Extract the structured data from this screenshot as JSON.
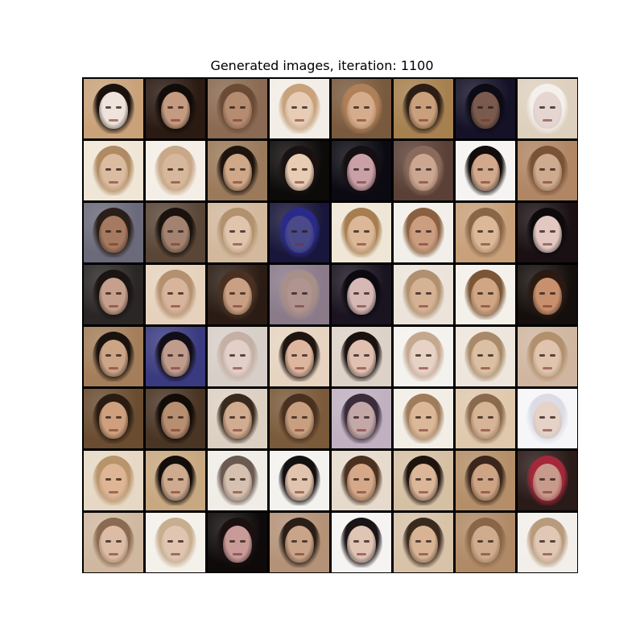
{
  "figure": {
    "title": "Generated images, iteration: 1100"
  },
  "grid": {
    "rows": 8,
    "cols": 8,
    "tiles": [
      {
        "bg": "#c9a27a",
        "hair": "#1a120d",
        "skin": "#efe4dc"
      },
      {
        "bg": "#2a1a12",
        "hair": "#120c09",
        "skin": "#c49a80"
      },
      {
        "bg": "#8a6a52",
        "hair": "#6b4a36",
        "skin": "#b58c70"
      },
      {
        "bg": "#f2ede6",
        "hair": "#c8a27a",
        "skin": "#e8cdb6"
      },
      {
        "bg": "#7a5a3e",
        "hair": "#b08058",
        "skin": "#d6ad8c"
      },
      {
        "bg": "#a6804f",
        "hair": "#2c1e14",
        "skin": "#caa07c"
      },
      {
        "bg": "#151228",
        "hair": "#0c0a14",
        "skin": "#7a5a4c"
      },
      {
        "bg": "#ded0be",
        "hair": "#f4f0ec",
        "skin": "#e6d6d2"
      },
      {
        "bg": "#f0e6d6",
        "hair": "#b08a62",
        "skin": "#dcbca0"
      },
      {
        "bg": "#f4eee6",
        "hair": "#c8a888",
        "skin": "#d8b89a"
      },
      {
        "bg": "#9a7a5a",
        "hair": "#1e140e",
        "skin": "#d0a888"
      },
      {
        "bg": "#0d0a0a",
        "hair": "#1a1210",
        "skin": "#e8ccb4"
      },
      {
        "bg": "#0b0a12",
        "hair": "#150f12",
        "skin": "#c8a0a6"
      },
      {
        "bg": "#5a4036",
        "hair": "#8a6a5a",
        "skin": "#cba690"
      },
      {
        "bg": "#f6f4f2",
        "hair": "#120c0a",
        "skin": "#d2a98c"
      },
      {
        "bg": "#b08664",
        "hair": "#7a5236",
        "skin": "#ceaa8e"
      },
      {
        "bg": "#6a6a7a",
        "hair": "#2a1e18",
        "skin": "#a67a60"
      },
      {
        "bg": "#5a4636",
        "hair": "#1a120e",
        "skin": "#a48270"
      },
      {
        "bg": "#d2b89c",
        "hair": "#b2926e",
        "skin": "#e0c4ac"
      },
      {
        "bg": "#18163a",
        "hair": "#2a2a8a",
        "skin": "#4a4a8a"
      },
      {
        "bg": "#efe6d6",
        "hair": "#a67e50",
        "skin": "#dcb898"
      },
      {
        "bg": "#f2efea",
        "hair": "#8a6040",
        "skin": "#cc9e80"
      },
      {
        "bg": "#c8a07a",
        "hair": "#8a6648",
        "skin": "#dcb898"
      },
      {
        "bg": "#1a1014",
        "hair": "#0e0a0c",
        "skin": "#e2c8c0"
      },
      {
        "bg": "#2a2626",
        "hair": "#1a1412",
        "skin": "#c6a08c"
      },
      {
        "bg": "#e6d2bc",
        "hair": "#b49070",
        "skin": "#d8b49a"
      },
      {
        "bg": "#2a1c14",
        "hair": "#4a3020",
        "skin": "#caa084"
      },
      {
        "bg": "#8a7a8a",
        "hair": "#a89088",
        "skin": "#b09490"
      },
      {
        "bg": "#1a1420",
        "hair": "#0c0a10",
        "skin": "#d6b8b4"
      },
      {
        "bg": "#ece4da",
        "hair": "#b09070",
        "skin": "#d6b294"
      },
      {
        "bg": "#f4f0ea",
        "hair": "#7a5636",
        "skin": "#d0a684"
      },
      {
        "bg": "#140e0c",
        "hair": "#2a1a12",
        "skin": "#c8906c"
      },
      {
        "bg": "#a47e5a",
        "hair": "#1a120e",
        "skin": "#cca486"
      },
      {
        "bg": "#3a3a80",
        "hair": "#120e18",
        "skin": "#c09c8c"
      },
      {
        "bg": "#d8cec8",
        "hair": "#c4b0a4",
        "skin": "#e2d0c8"
      },
      {
        "bg": "#e6d4c0",
        "hair": "#1e1410",
        "skin": "#deb6a0"
      },
      {
        "bg": "#ddd2c8",
        "hair": "#1a1210",
        "skin": "#e0c0b0"
      },
      {
        "bg": "#f4f2ee",
        "hair": "#c4a890",
        "skin": "#e8d2c6"
      },
      {
        "bg": "#eee6dc",
        "hair": "#a88a6a",
        "skin": "#dcc0a4"
      },
      {
        "bg": "#d0b6a0",
        "hair": "#b2906e",
        "skin": "#e0c4ae"
      },
      {
        "bg": "#6a4c30",
        "hair": "#2a1c12",
        "skin": "#cea07e"
      },
      {
        "bg": "#4a3424",
        "hair": "#120c08",
        "skin": "#b88e70"
      },
      {
        "bg": "#dcd0c2",
        "hair": "#3a2a1e",
        "skin": "#d2ac90"
      },
      {
        "bg": "#7a5a3a",
        "hair": "#4a3020",
        "skin": "#c8a080"
      },
      {
        "bg": "#c0b0c0",
        "hair": "#3a2c3a",
        "skin": "#c4a8a8"
      },
      {
        "bg": "#f2eee6",
        "hair": "#a07c5a",
        "skin": "#dcb898"
      },
      {
        "bg": "#e0c8ac",
        "hair": "#8a6a4c",
        "skin": "#d8b496"
      },
      {
        "bg": "#f6f6f8",
        "hair": "#dcdce6",
        "skin": "#e6d2c6"
      },
      {
        "bg": "#e6d8c4",
        "hair": "#b8946a",
        "skin": "#deb696"
      },
      {
        "bg": "#c8a880",
        "hair": "#120c0a",
        "skin": "#ceaa8e"
      },
      {
        "bg": "#f0ece6",
        "hair": "#6a5a50",
        "skin": "#d6c0b0"
      },
      {
        "bg": "#f4f2ee",
        "hair": "#141010",
        "skin": "#e2c4ae"
      },
      {
        "bg": "#e6dacc",
        "hair": "#4a3020",
        "skin": "#d4a888"
      },
      {
        "bg": "#d6c0a4",
        "hair": "#1e140e",
        "skin": "#dcb698"
      },
      {
        "bg": "#b48e68",
        "hair": "#3a261a",
        "skin": "#cfa484"
      },
      {
        "bg": "#2a1a18",
        "hair": "#a4283a",
        "skin": "#c89a8c"
      },
      {
        "bg": "#d0b8a0",
        "hair": "#8a6a50",
        "skin": "#dcbca4"
      },
      {
        "bg": "#f4f0ea",
        "hair": "#c8ae90",
        "skin": "#e0c6b0"
      },
      {
        "bg": "#0e0a0a",
        "hair": "#1a1010",
        "skin": "#c89a98"
      },
      {
        "bg": "#b49278",
        "hair": "#2a1e16",
        "skin": "#caa488"
      },
      {
        "bg": "#f6f4f2",
        "hair": "#1a1418",
        "skin": "#e0c4b4"
      },
      {
        "bg": "#d8c2a8",
        "hair": "#3a2a1e",
        "skin": "#d8b494"
      },
      {
        "bg": "#b08a66",
        "hair": "#8a6648",
        "skin": "#d0ac8e"
      },
      {
        "bg": "#f2efea",
        "hair": "#b89a7c",
        "skin": "#e0c8b4"
      }
    ]
  }
}
